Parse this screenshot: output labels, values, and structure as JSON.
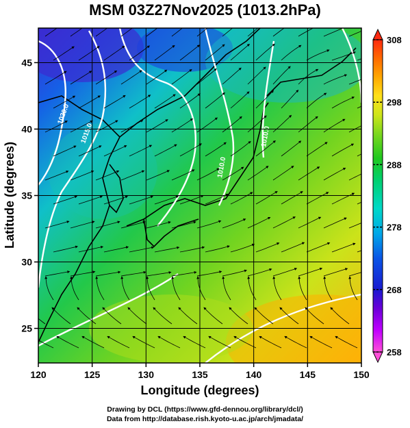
{
  "title": "MSM 03Z27Nov2025 (1013.2hPa)",
  "axes": {
    "xlabel": "Longitude (degrees)",
    "ylabel": "Latitude  (degrees)",
    "xlim": [
      120,
      150
    ],
    "ylim": [
      22.4,
      47.6
    ],
    "xticks": [
      "120",
      "125",
      "130",
      "135",
      "140",
      "145",
      "150"
    ],
    "yticks": [
      "25",
      "30",
      "35",
      "40",
      "45"
    ]
  },
  "colorbar": {
    "min": 258,
    "max": 308,
    "ticks": [
      "258",
      "268",
      "278",
      "288",
      "298",
      "308"
    ],
    "colors": [
      "#ff4fd8",
      "#c000ff",
      "#6a00d8",
      "#1a1ad0",
      "#0a55e6",
      "#00a8e8",
      "#00d9c8",
      "#00d070",
      "#1fc81f",
      "#7ed81e",
      "#cfe51a",
      "#ffe01a",
      "#ffa800",
      "#ff6a00",
      "#ff2a10"
    ]
  },
  "contours": [
    {
      "label": "1020.0"
    },
    {
      "label": "1015.0"
    },
    {
      "label": "1010.0"
    },
    {
      "label": "1010.0"
    }
  ],
  "credits": {
    "line1": "Drawing by DCL (https://www.gfd-dennou.org/library/dcl/)",
    "line2": "Data from http://database.rish.kyoto-u.ac.jp/arch/jmadata/"
  },
  "colors": {
    "land_outline": "#000000",
    "isobar": "#ffffff",
    "streamline": "#000000"
  }
}
